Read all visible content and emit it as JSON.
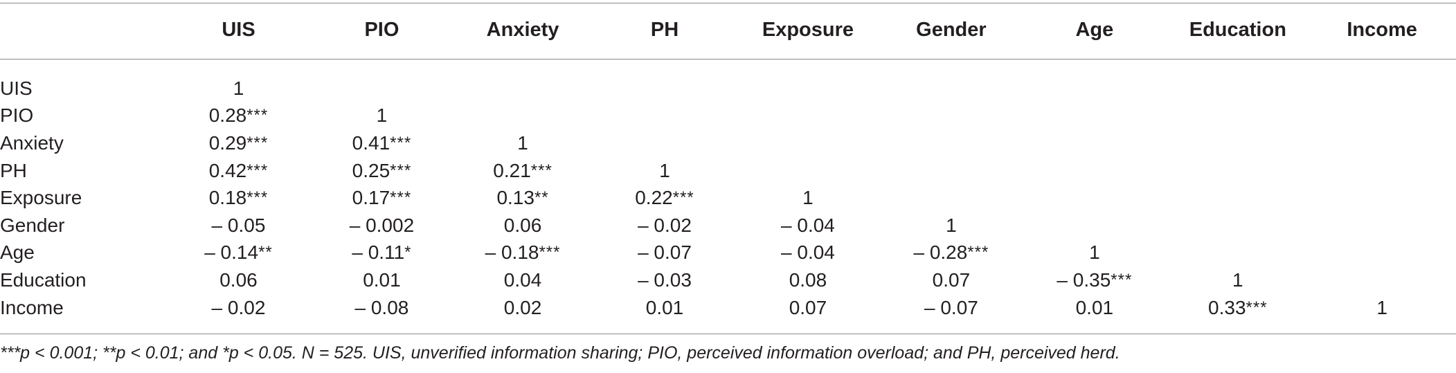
{
  "table": {
    "row_header_label": "",
    "columns": [
      "UIS",
      "PIO",
      "Anxiety",
      "PH",
      "Exposure",
      "Gender",
      "Age",
      "Education",
      "Income"
    ],
    "rows": [
      {
        "label": "UIS",
        "cells": [
          {
            "v": "1",
            "s": ""
          },
          {
            "v": "",
            "s": ""
          },
          {
            "v": "",
            "s": ""
          },
          {
            "v": "",
            "s": ""
          },
          {
            "v": "",
            "s": ""
          },
          {
            "v": "",
            "s": ""
          },
          {
            "v": "",
            "s": ""
          },
          {
            "v": "",
            "s": ""
          },
          {
            "v": "",
            "s": ""
          }
        ]
      },
      {
        "label": "PIO",
        "cells": [
          {
            "v": "0.28",
            "s": "***"
          },
          {
            "v": "1",
            "s": ""
          },
          {
            "v": "",
            "s": ""
          },
          {
            "v": "",
            "s": ""
          },
          {
            "v": "",
            "s": ""
          },
          {
            "v": "",
            "s": ""
          },
          {
            "v": "",
            "s": ""
          },
          {
            "v": "",
            "s": ""
          },
          {
            "v": "",
            "s": ""
          }
        ]
      },
      {
        "label": "Anxiety",
        "cells": [
          {
            "v": "0.29",
            "s": "***"
          },
          {
            "v": "0.41",
            "s": "***"
          },
          {
            "v": "1",
            "s": ""
          },
          {
            "v": "",
            "s": ""
          },
          {
            "v": "",
            "s": ""
          },
          {
            "v": "",
            "s": ""
          },
          {
            "v": "",
            "s": ""
          },
          {
            "v": "",
            "s": ""
          },
          {
            "v": "",
            "s": ""
          }
        ]
      },
      {
        "label": "PH",
        "cells": [
          {
            "v": "0.42",
            "s": "***"
          },
          {
            "v": "0.25",
            "s": "***"
          },
          {
            "v": "0.21",
            "s": "***"
          },
          {
            "v": "1",
            "s": ""
          },
          {
            "v": "",
            "s": ""
          },
          {
            "v": "",
            "s": ""
          },
          {
            "v": "",
            "s": ""
          },
          {
            "v": "",
            "s": ""
          },
          {
            "v": "",
            "s": ""
          }
        ]
      },
      {
        "label": "Exposure",
        "cells": [
          {
            "v": "0.18",
            "s": "***"
          },
          {
            "v": "0.17",
            "s": "***"
          },
          {
            "v": "0.13",
            "s": "**"
          },
          {
            "v": "0.22",
            "s": "***"
          },
          {
            "v": "1",
            "s": ""
          },
          {
            "v": "",
            "s": ""
          },
          {
            "v": "",
            "s": ""
          },
          {
            "v": "",
            "s": ""
          },
          {
            "v": "",
            "s": ""
          }
        ]
      },
      {
        "label": "Gender",
        "cells": [
          {
            "v": "– 0.05",
            "s": ""
          },
          {
            "v": "– 0.002",
            "s": ""
          },
          {
            "v": "0.06",
            "s": ""
          },
          {
            "v": "– 0.02",
            "s": ""
          },
          {
            "v": "– 0.04",
            "s": ""
          },
          {
            "v": "1",
            "s": ""
          },
          {
            "v": "",
            "s": ""
          },
          {
            "v": "",
            "s": ""
          },
          {
            "v": "",
            "s": ""
          }
        ]
      },
      {
        "label": "Age",
        "cells": [
          {
            "v": "– 0.14",
            "s": "**"
          },
          {
            "v": "– 0.11",
            "s": "*"
          },
          {
            "v": "– 0.18",
            "s": "***"
          },
          {
            "v": "– 0.07",
            "s": ""
          },
          {
            "v": "– 0.04",
            "s": ""
          },
          {
            "v": "– 0.28",
            "s": "***"
          },
          {
            "v": "1",
            "s": ""
          },
          {
            "v": "",
            "s": ""
          },
          {
            "v": "",
            "s": ""
          }
        ]
      },
      {
        "label": "Education",
        "cells": [
          {
            "v": "0.06",
            "s": ""
          },
          {
            "v": "0.01",
            "s": ""
          },
          {
            "v": "0.04",
            "s": ""
          },
          {
            "v": "– 0.03",
            "s": ""
          },
          {
            "v": "0.08",
            "s": ""
          },
          {
            "v": "0.07",
            "s": ""
          },
          {
            "v": "– 0.35",
            "s": "***"
          },
          {
            "v": "1",
            "s": ""
          },
          {
            "v": "",
            "s": ""
          }
        ]
      },
      {
        "label": "Income",
        "cells": [
          {
            "v": "– 0.02",
            "s": ""
          },
          {
            "v": "– 0.08",
            "s": ""
          },
          {
            "v": "0.02",
            "s": ""
          },
          {
            "v": "0.01",
            "s": ""
          },
          {
            "v": "0.07",
            "s": ""
          },
          {
            "v": "– 0.07",
            "s": ""
          },
          {
            "v": "0.01",
            "s": ""
          },
          {
            "v": "0.33",
            "s": "***"
          },
          {
            "v": "1",
            "s": ""
          }
        ]
      }
    ]
  },
  "footnote": "***p < 0.001; **p < 0.01; and  *p < 0.05. N = 525. UIS, unverified information sharing; PIO, perceived information overload; and PH, perceived herd."
}
